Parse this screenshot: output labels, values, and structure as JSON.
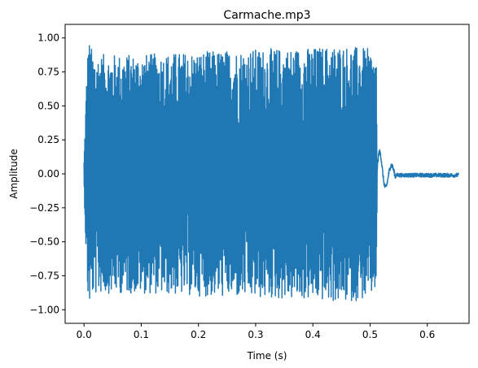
{
  "chart_data": {
    "type": "line",
    "title": "Carmache.mp3",
    "xlabel": "Time (s)",
    "ylabel": "Amplitude",
    "xlim": [
      -0.033,
      0.673
    ],
    "ylim": [
      -1.1,
      1.1
    ],
    "xticks": [
      0.0,
      0.1,
      0.2,
      0.3,
      0.4,
      0.5,
      0.6
    ],
    "xtick_labels": [
      "0.0",
      "0.1",
      "0.2",
      "0.3",
      "0.4",
      "0.5",
      "0.6"
    ],
    "yticks": [
      -1.0,
      -0.75,
      -0.5,
      -0.25,
      0.0,
      0.25,
      0.5,
      0.75,
      1.0
    ],
    "ytick_labels": [
      "−1.00",
      "−0.75",
      "−0.50",
      "−0.25",
      "0.00",
      "0.25",
      "0.50",
      "0.75",
      "1.00"
    ],
    "grid": false,
    "legend": "none",
    "series": [
      {
        "color": "#1f77b4",
        "description": "audio waveform",
        "x": [
          0.0,
          0.003,
          0.006,
          0.008,
          0.01,
          0.012,
          0.015,
          0.02,
          0.03,
          0.05,
          0.1,
          0.2,
          0.3,
          0.4,
          0.45,
          0.5,
          0.51,
          0.52,
          0.528,
          0.535,
          0.545,
          0.56,
          0.6,
          0.655
        ],
        "y": [
          0.0,
          0.15,
          -0.85,
          1.0,
          -1.03,
          0.95,
          -0.8,
          0.88,
          -0.9,
          0.85,
          -0.8,
          0.9,
          0.9,
          -0.95,
          0.95,
          -0.9,
          0.85,
          0.15,
          0.2,
          0.05,
          -0.02,
          -0.02,
          -0.01,
          -0.01
        ],
        "envelope": [
          [
            0.0,
            0.1
          ],
          [
            0.005,
            0.8
          ],
          [
            0.008,
            1.0
          ],
          [
            0.015,
            0.9
          ],
          [
            0.03,
            0.88
          ],
          [
            0.1,
            0.88
          ],
          [
            0.2,
            0.9
          ],
          [
            0.3,
            0.92
          ],
          [
            0.4,
            0.93
          ],
          [
            0.45,
            0.95
          ],
          [
            0.5,
            0.92
          ],
          [
            0.511,
            0.85
          ],
          [
            0.513,
            0.18
          ],
          [
            0.52,
            0.12
          ],
          [
            0.528,
            0.22
          ],
          [
            0.535,
            0.12
          ],
          [
            0.545,
            0.03
          ],
          [
            0.56,
            0.02
          ],
          [
            0.6,
            0.02
          ],
          [
            0.655,
            0.02
          ]
        ]
      }
    ]
  }
}
